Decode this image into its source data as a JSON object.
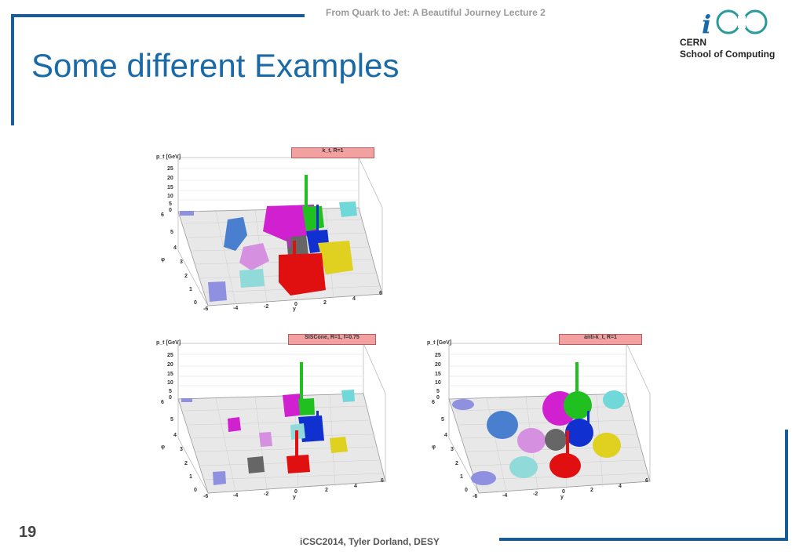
{
  "header": {
    "lecture": "From Quark to Jet: A Beautiful Journey Lecture 2",
    "title": "Some different Examples"
  },
  "logo": {
    "mark": "iCSC",
    "line1": "CERN",
    "line2": "School of Computing"
  },
  "footer": {
    "slide_number": "19",
    "credit": "iCSC2014, Tyler Dorland, DESY"
  },
  "plots": [
    {
      "title": "k_t, R=1",
      "ylabel": "p_t [GeV]",
      "xlabel": "y",
      "philabel": "φ",
      "pt_ticks": [
        "25",
        "20",
        "15",
        "10",
        "5",
        "0"
      ],
      "phi_ticks": [
        "6",
        "5",
        "4",
        "3",
        "2",
        "1",
        "0"
      ],
      "y_ticks": [
        "-6",
        "-4",
        "-2",
        "0",
        "2",
        "4",
        "6"
      ]
    },
    {
      "title": "SISCone, R=1, f=0.75",
      "ylabel": "p_t [GeV]",
      "xlabel": "y",
      "philabel": "φ",
      "pt_ticks": [
        "25",
        "20",
        "15",
        "10",
        "5",
        "0"
      ],
      "phi_ticks": [
        "6",
        "5",
        "4",
        "3",
        "2",
        "1",
        "0"
      ],
      "y_ticks": [
        "-6",
        "-4",
        "-2",
        "0",
        "2",
        "4",
        "6"
      ]
    },
    {
      "title": "anti-k_t, R=1",
      "ylabel": "p_t [GeV]",
      "xlabel": "y",
      "philabel": "φ",
      "pt_ticks": [
        "25",
        "20",
        "15",
        "10",
        "5",
        "0"
      ],
      "phi_ticks": [
        "6",
        "5",
        "4",
        "3",
        "2",
        "1",
        "0"
      ],
      "y_ticks": [
        "-6",
        "-4",
        "-2",
        "0",
        "2",
        "4",
        "6"
      ]
    }
  ]
}
